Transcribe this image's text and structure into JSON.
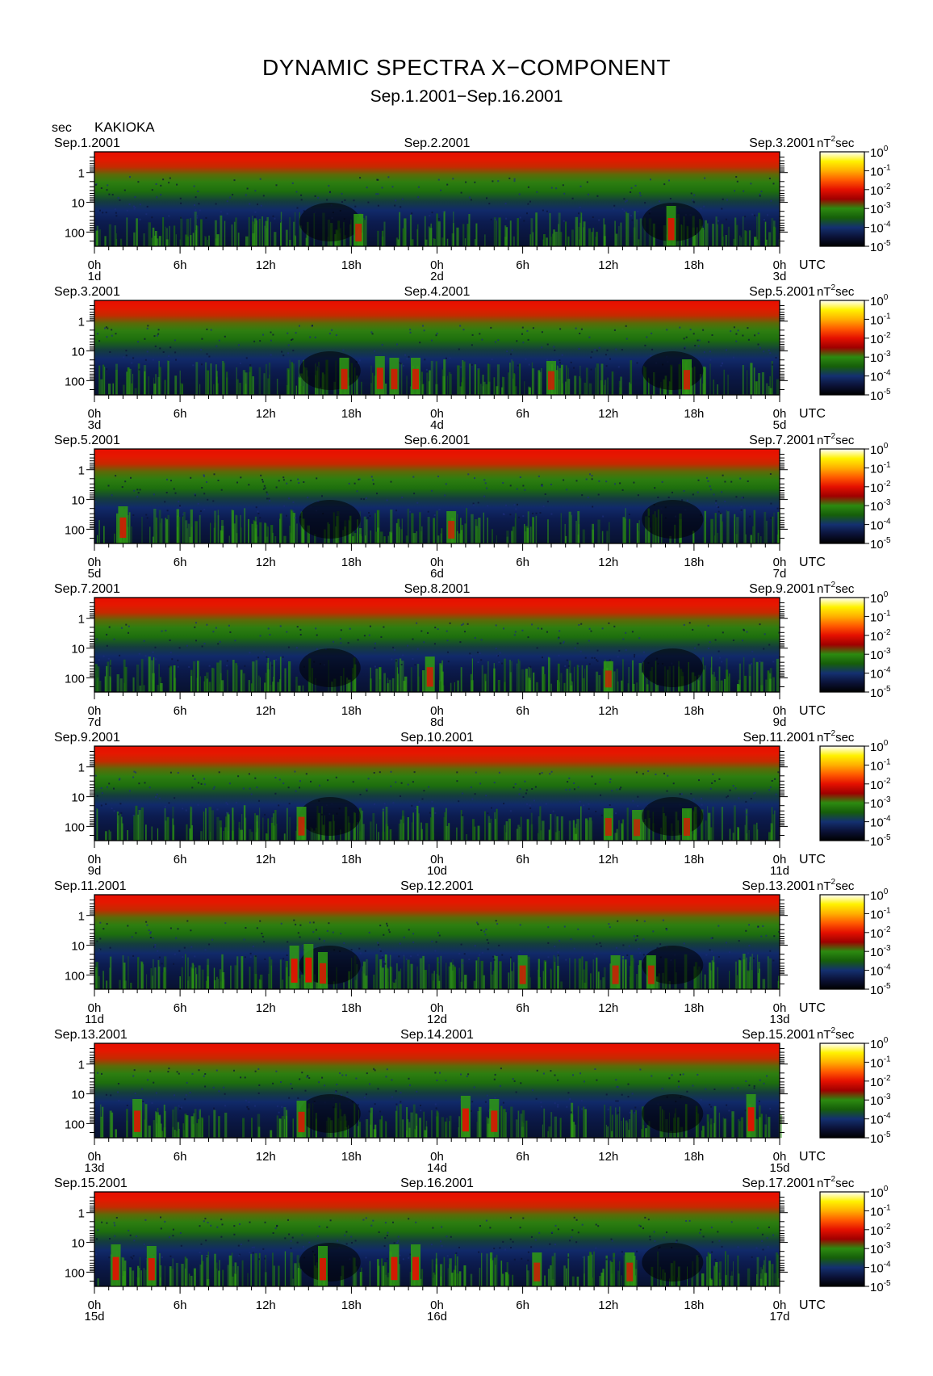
{
  "title": "DYNAMIC SPECTRA X−COMPONENT",
  "subtitle": "Sep.1.2001−Sep.16.2001",
  "station": "KAKIOKA",
  "yunit": "sec",
  "colorbar_unit_prefix": "nT",
  "colorbar_unit_exp": "2",
  "colorbar_unit_suffix": "sec",
  "utc_label": "UTC",
  "chart_data": {
    "type": "heatmap",
    "title": "DYNAMIC SPECTRA X−COMPONENT",
    "subtitle": "Sep.1.2001−Sep.16.2001",
    "ylabel": "sec",
    "y_scale": "log",
    "y_ticks": [
      "1",
      "10",
      "100"
    ],
    "x_ticks": [
      "0h",
      "6h",
      "12h",
      "18h",
      "0h",
      "6h",
      "12h",
      "18h",
      "0h"
    ],
    "colorbar": {
      "unit": "nT²sec",
      "ticks": [
        {
          "base": "10",
          "exp": "0"
        },
        {
          "base": "10",
          "exp": "-1"
        },
        {
          "base": "10",
          "exp": "-2"
        },
        {
          "base": "10",
          "exp": "-3"
        },
        {
          "base": "10",
          "exp": "-4"
        },
        {
          "base": "10",
          "exp": "-5"
        }
      ],
      "colors": [
        "#ffffff",
        "#fff200",
        "#ffb000",
        "#ff5a00",
        "#e41000",
        "#9f0000",
        "#2c8a10",
        "#165e0a",
        "#143070",
        "#0b1238",
        "#000000"
      ]
    },
    "panels": [
      {
        "date_left": "Sep.1.2001",
        "date_mid": "Sep.2.2001",
        "date_right": "Sep.3.2001",
        "day_left": "1d",
        "day_mid": "2d",
        "day_right": "3d",
        "events": [
          {
            "t": 18.5,
            "level": 0.55
          },
          {
            "t": 40.4,
            "level": 0.8
          }
        ]
      },
      {
        "date_left": "Sep.3.2001",
        "date_mid": "Sep.4.2001",
        "date_right": "Sep.5.2001",
        "day_left": "3d",
        "day_mid": "4d",
        "day_right": "5d",
        "events": [
          {
            "t": 17.5,
            "level": 0.7
          },
          {
            "t": 20.0,
            "level": 0.75
          },
          {
            "t": 21.0,
            "level": 0.7
          },
          {
            "t": 22.5,
            "level": 0.7
          },
          {
            "t": 32.0,
            "level": 0.6
          },
          {
            "t": 41.5,
            "level": 0.65
          }
        ]
      },
      {
        "date_left": "Sep.5.2001",
        "date_mid": "Sep.6.2001",
        "date_right": "Sep.7.2001",
        "day_left": "5d",
        "day_mid": "6d",
        "day_right": "7d",
        "events": [
          {
            "t": 2.0,
            "level": 0.7
          },
          {
            "t": 25.0,
            "level": 0.55
          }
        ]
      },
      {
        "date_left": "Sep.7.2001",
        "date_mid": "Sep.8.2001",
        "date_right": "Sep.9.2001",
        "day_left": "7d",
        "day_mid": "8d",
        "day_right": "9d",
        "events": [
          {
            "t": 23.5,
            "level": 0.65
          },
          {
            "t": 36.0,
            "level": 0.5
          }
        ]
      },
      {
        "date_left": "Sep.9.2001",
        "date_mid": "Sep.10.2001",
        "date_right": "Sep.11.2001",
        "day_left": "9d",
        "day_mid": "10d",
        "day_right": "11d",
        "events": [
          {
            "t": 14.5,
            "level": 0.6
          },
          {
            "t": 36.0,
            "level": 0.55
          },
          {
            "t": 38.0,
            "level": 0.5
          },
          {
            "t": 41.5,
            "level": 0.55
          }
        ]
      },
      {
        "date_left": "Sep.11.2001",
        "date_mid": "Sep.12.2001",
        "date_right": "Sep.13.2001",
        "day_left": "11d",
        "day_mid": "12d",
        "day_right": "13d",
        "events": [
          {
            "t": 14.0,
            "level": 0.9
          },
          {
            "t": 15.0,
            "level": 0.95
          },
          {
            "t": 16.0,
            "level": 0.7
          },
          {
            "t": 30.0,
            "level": 0.6
          },
          {
            "t": 36.5,
            "level": 0.6
          },
          {
            "t": 39.0,
            "level": 0.6
          }
        ]
      },
      {
        "date_left": "Sep.13.2001",
        "date_mid": "Sep.14.2001",
        "date_right": "Sep.15.2001",
        "day_left": "13d",
        "day_mid": "14d",
        "day_right": "15d",
        "events": [
          {
            "t": 3.0,
            "level": 0.75
          },
          {
            "t": 14.5,
            "level": 0.7
          },
          {
            "t": 26.0,
            "level": 0.85
          },
          {
            "t": 28.0,
            "level": 0.75
          },
          {
            "t": 46.0,
            "level": 0.9
          }
        ]
      },
      {
        "date_left": "Sep.15.2001",
        "date_mid": "Sep.16.2001",
        "date_right": "Sep.17.2001",
        "day_left": "15d",
        "day_mid": "16d",
        "day_right": "17d",
        "events": [
          {
            "t": 1.5,
            "level": 0.85
          },
          {
            "t": 4.0,
            "level": 0.8
          },
          {
            "t": 16.0,
            "level": 0.8
          },
          {
            "t": 21.0,
            "level": 0.85
          },
          {
            "t": 22.5,
            "level": 0.85
          },
          {
            "t": 31.0,
            "level": 0.6
          },
          {
            "t": 37.5,
            "level": 0.6
          }
        ]
      }
    ]
  }
}
